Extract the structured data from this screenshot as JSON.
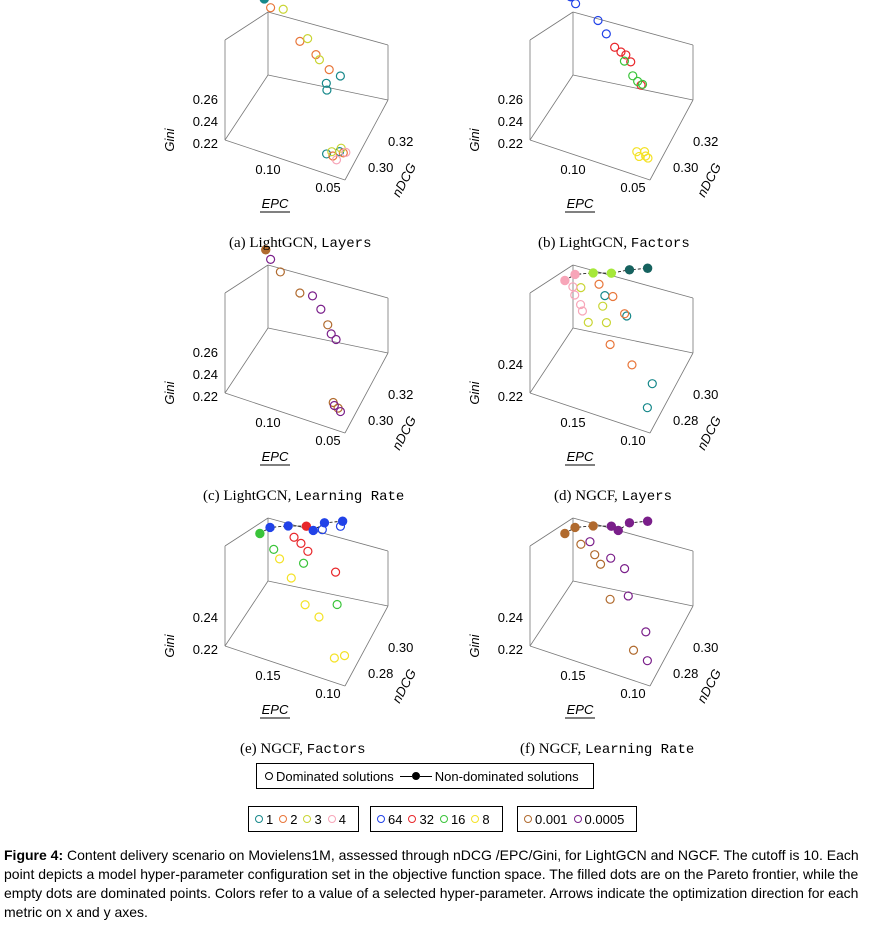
{
  "colors": {
    "layers_lgcn": [
      "#16888a",
      "#e8763a",
      "#c9d534",
      "#f7a5b8"
    ],
    "factors": [
      "#2142e8",
      "#e8262a",
      "#3ac43a",
      "#f4e226"
    ],
    "lr": [
      "#b06a2e",
      "#7a1f8a"
    ],
    "ngcf_layers_front": [
      "#16625f",
      "#a6e83a",
      "#f7a5b8"
    ]
  },
  "subcaptions": [
    {
      "prefix": "(a) LightGCN, ",
      "mono": "Layers"
    },
    {
      "prefix": "(b) LightGCN, ",
      "mono": "Factors"
    },
    {
      "prefix": "(c) LightGCN, ",
      "mono": "Learning Rate"
    },
    {
      "prefix": "(d) NGCF, ",
      "mono": "Layers"
    },
    {
      "prefix": "(e) NGCF, ",
      "mono": "Factors"
    },
    {
      "prefix": "(f) NGCF, ",
      "mono": "Learning Rate"
    }
  ],
  "legend": {
    "main": {
      "dominated": "Dominated solutions",
      "nondominated": "Non-dominated solutions"
    },
    "layers": [
      "1",
      "2",
      "3",
      "4"
    ],
    "factors": [
      "64",
      "32",
      "16",
      "8"
    ],
    "lr": [
      "0.001",
      "0.0005"
    ]
  },
  "caption": {
    "label": "Figure 4:",
    "text": "Content delivery scenario on Movielens1M, assessed through nDCG /EPC/Gini, for LightGCN and NGCF. The cutoff is 10. Each point depicts a model hyper-parameter configuration set in the objective function space. The filled dots are on the Pareto frontier, while the empty dots are dominated points. Colors refer to a value of a selected hyper-parameter. Arrows indicate the optimization direction for each metric on x and y axes."
  },
  "chart_data": [
    {
      "type": "scatter",
      "title": "(a) LightGCN, Layers",
      "xlabel": "EPC",
      "ylabel": "nDCG",
      "zlabel": "Gini",
      "x_ticks": [
        "0.10",
        "0.05"
      ],
      "y_ticks": [
        "0.30",
        "0.32"
      ],
      "z_ticks": [
        "0.22",
        "0.24",
        "0.26"
      ],
      "color_by": "Layers",
      "series": [
        {
          "name": "1",
          "points": [
            [
              0.05,
              0.305,
              0.262
            ],
            [
              0.055,
              0.3,
              0.258
            ],
            [
              0.06,
              0.304,
              0.255
            ],
            [
              0.053,
              0.298,
              0.214
            ],
            [
              0.045,
              0.3,
              0.215
            ]
          ]
        },
        {
          "name": "2",
          "points": [
            [
              0.12,
              0.318,
              0.27
            ],
            [
              0.09,
              0.312,
              0.264
            ],
            [
              0.075,
              0.31,
              0.262
            ],
            [
              0.06,
              0.306,
              0.262
            ],
            [
              0.048,
              0.298,
              0.214
            ],
            [
              0.042,
              0.3,
              0.215
            ]
          ]
        },
        {
          "name": "3",
          "points": [
            [
              0.11,
              0.318,
              0.272
            ],
            [
              0.085,
              0.313,
              0.266
            ],
            [
              0.07,
              0.308,
              0.263
            ],
            [
              0.05,
              0.299,
              0.215
            ],
            [
              0.046,
              0.302,
              0.214
            ]
          ]
        },
        {
          "name": "4",
          "points": [
            [
              0.125,
              0.318,
              0.275
            ],
            [
              0.04,
              0.3,
              0.216
            ],
            [
              0.044,
              0.297,
              0.214
            ]
          ]
        }
      ],
      "pareto": [
        [
          0.125,
          0.318,
          0.275
        ]
      ]
    },
    {
      "type": "scatter",
      "title": "(b) LightGCN, Factors",
      "xlabel": "EPC",
      "ylabel": "nDCG",
      "zlabel": "Gini",
      "x_ticks": [
        "0.10",
        "0.05"
      ],
      "y_ticks": [
        "0.30",
        "0.32"
      ],
      "z_ticks": [
        "0.22",
        "0.24",
        "0.26"
      ],
      "color_by": "Factors",
      "series": [
        {
          "name": "64",
          "points": [
            [
              0.12,
              0.318,
              0.273
            ],
            [
              0.1,
              0.316,
              0.27
            ],
            [
              0.09,
              0.313,
              0.268
            ]
          ]
        },
        {
          "name": "32",
          "points": [
            [
              0.08,
              0.31,
              0.266
            ],
            [
              0.07,
              0.309,
              0.265
            ],
            [
              0.075,
              0.31,
              0.264
            ],
            [
              0.065,
              0.308,
              0.263
            ],
            [
              0.05,
              0.302,
              0.26
            ]
          ]
        },
        {
          "name": "16",
          "points": [
            [
              0.07,
              0.308,
              0.262
            ],
            [
              0.06,
              0.305,
              0.259
            ],
            [
              0.055,
              0.304,
              0.258
            ],
            [
              0.05,
              0.303,
              0.259
            ]
          ]
        },
        {
          "name": "8",
          "points": [
            [
              0.05,
              0.299,
              0.215
            ],
            [
              0.047,
              0.298,
              0.214
            ],
            [
              0.045,
              0.3,
              0.215
            ],
            [
              0.043,
              0.299,
              0.214
            ],
            [
              0.04,
              0.298,
              0.215
            ]
          ]
        }
      ],
      "pareto": [
        [
          0.125,
          0.319,
          0.275
        ]
      ]
    },
    {
      "type": "scatter",
      "title": "(c) LightGCN, Learning Rate",
      "xlabel": "EPC",
      "ylabel": "nDCG",
      "zlabel": "Gini",
      "x_ticks": [
        "0.10",
        "0.05"
      ],
      "y_ticks": [
        "0.30",
        "0.32"
      ],
      "z_ticks": [
        "0.22",
        "0.24",
        "0.26"
      ],
      "color_by": "Learning Rate",
      "series": [
        {
          "name": "0.001",
          "points": [
            [
              0.11,
              0.316,
              0.268
            ],
            [
              0.09,
              0.312,
              0.265
            ],
            [
              0.06,
              0.305,
              0.262
            ],
            [
              0.05,
              0.3,
              0.215
            ],
            [
              0.045,
              0.299,
              0.214
            ]
          ]
        },
        {
          "name": "0.0005",
          "points": [
            [
              0.12,
              0.318,
              0.271
            ],
            [
              0.08,
              0.312,
              0.266
            ],
            [
              0.07,
              0.309,
              0.264
            ],
            [
              0.055,
              0.303,
              0.26
            ],
            [
              0.05,
              0.302,
              0.259
            ],
            [
              0.048,
              0.299,
              0.215
            ],
            [
              0.042,
              0.298,
              0.214
            ]
          ]
        }
      ],
      "pareto": [
        [
          0.125,
          0.319,
          0.275
        ]
      ]
    },
    {
      "type": "scatter",
      "title": "(d) NGCF, Layers",
      "xlabel": "EPC",
      "ylabel": "nDCG",
      "zlabel": "Gini",
      "x_ticks": [
        "0.15",
        "0.10"
      ],
      "y_ticks": [
        "0.28",
        "0.30"
      ],
      "z_ticks": [
        "0.22",
        "0.24"
      ],
      "color_by": "Layers",
      "series": [
        {
          "name": "1",
          "points": [
            [
              0.13,
              0.3,
              0.245
            ],
            [
              0.1,
              0.298,
              0.24
            ],
            [
              0.06,
              0.292,
              0.214
            ],
            [
              0.05,
              0.28,
              0.213
            ]
          ]
        },
        {
          "name": "2",
          "points": [
            [
              0.14,
              0.302,
              0.248
            ],
            [
              0.12,
              0.3,
              0.246
            ],
            [
              0.1,
              0.296,
              0.243
            ],
            [
              0.11,
              0.29,
              0.23
            ],
            [
              0.08,
              0.288,
              0.225
            ]
          ]
        },
        {
          "name": "3",
          "points": [
            [
              0.16,
              0.3,
              0.245
            ],
            [
              0.13,
              0.298,
              0.241
            ],
            [
              0.12,
              0.294,
              0.237
            ],
            [
              0.14,
              0.292,
              0.236
            ]
          ]
        },
        {
          "name": "4",
          "points": [
            [
              0.17,
              0.3,
              0.244
            ],
            [
              0.165,
              0.298,
              0.242
            ],
            [
              0.155,
              0.296,
              0.24
            ],
            [
              0.15,
              0.294,
              0.239
            ]
          ]
        }
      ],
      "pareto": [
        [
          0.18,
          0.3,
          0.246
        ],
        [
          0.17,
          0.302,
          0.249
        ],
        [
          0.15,
          0.304,
          0.251
        ],
        [
          0.13,
          0.306,
          0.252
        ],
        [
          0.11,
          0.308,
          0.255
        ],
        [
          0.09,
          0.31,
          0.257
        ]
      ]
    },
    {
      "type": "scatter",
      "title": "(e) NGCF, Factors",
      "xlabel": "EPC",
      "ylabel": "nDCG",
      "zlabel": "Gini",
      "x_ticks": [
        "0.15",
        "0.10"
      ],
      "y_ticks": [
        "0.28",
        "0.30"
      ],
      "z_ticks": [
        "0.22",
        "0.24"
      ],
      "color_by": "Factors",
      "series": [
        {
          "name": "64",
          "points": [
            [
              0.11,
              0.306,
              0.253
            ],
            [
              0.09,
              0.308,
              0.256
            ]
          ]
        },
        {
          "name": "32",
          "points": [
            [
              0.14,
              0.302,
              0.248
            ],
            [
              0.13,
              0.301,
              0.247
            ],
            [
              0.12,
              0.3,
              0.245
            ],
            [
              0.08,
              0.296,
              0.243
            ]
          ]
        },
        {
          "name": "16",
          "points": [
            [
              0.16,
              0.298,
              0.242
            ],
            [
              0.12,
              0.296,
              0.242
            ],
            [
              0.07,
              0.29,
              0.232
            ]
          ]
        },
        {
          "name": "8",
          "points": [
            [
              0.15,
              0.296,
              0.24
            ],
            [
              0.13,
              0.292,
              0.236
            ],
            [
              0.11,
              0.29,
              0.226
            ],
            [
              0.09,
              0.288,
              0.224
            ],
            [
              0.06,
              0.28,
              0.213
            ],
            [
              0.05,
              0.282,
              0.214
            ]
          ]
        }
      ],
      "pareto": [
        [
          0.18,
          0.3,
          0.246
        ],
        [
          0.17,
          0.302,
          0.249
        ],
        [
          0.15,
          0.304,
          0.251
        ],
        [
          0.13,
          0.306,
          0.252
        ],
        [
          0.12,
          0.305,
          0.252
        ],
        [
          0.11,
          0.308,
          0.255
        ],
        [
          0.09,
          0.31,
          0.257
        ]
      ]
    },
    {
      "type": "scatter",
      "title": "(f) NGCF, Learning Rate",
      "xlabel": "EPC",
      "ylabel": "nDCG",
      "zlabel": "Gini",
      "x_ticks": [
        "0.15",
        "0.10"
      ],
      "y_ticks": [
        "0.28",
        "0.30"
      ],
      "z_ticks": [
        "0.22",
        "0.24"
      ],
      "color_by": "Learning Rate",
      "series": [
        {
          "name": "0.001",
          "points": [
            [
              0.16,
              0.3,
              0.243
            ],
            [
              0.14,
              0.298,
              0.242
            ],
            [
              0.13,
              0.296,
              0.24
            ],
            [
              0.11,
              0.29,
              0.229
            ],
            [
              0.07,
              0.282,
              0.214
            ]
          ]
        },
        {
          "name": "0.0005",
          "points": [
            [
              0.15,
              0.301,
              0.245
            ],
            [
              0.12,
              0.298,
              0.243
            ],
            [
              0.1,
              0.296,
              0.242
            ],
            [
              0.09,
              0.292,
              0.232
            ],
            [
              0.06,
              0.286,
              0.222
            ],
            [
              0.05,
              0.28,
              0.213
            ]
          ]
        }
      ],
      "pareto": [
        [
          0.18,
          0.3,
          0.246
        ],
        [
          0.17,
          0.302,
          0.249
        ],
        [
          0.15,
          0.304,
          0.251
        ],
        [
          0.13,
          0.306,
          0.252
        ],
        [
          0.12,
          0.305,
          0.252
        ],
        [
          0.11,
          0.308,
          0.255
        ],
        [
          0.09,
          0.31,
          0.257
        ]
      ]
    }
  ]
}
